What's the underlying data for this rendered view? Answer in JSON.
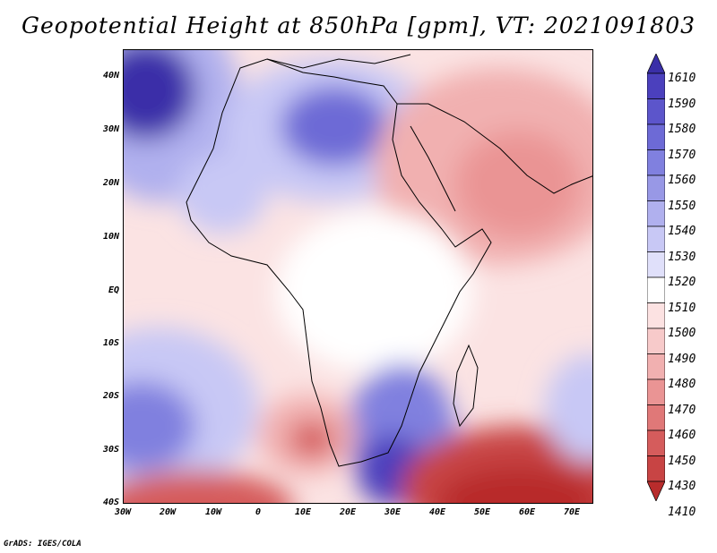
{
  "title": "Geopotential Height at 850hPa [gpm], VT: 2021091803",
  "footer": "GrADS: IGES/COLA",
  "y_axis": [
    "40N",
    "30N",
    "20N",
    "10N",
    "EQ",
    "10S",
    "20S",
    "30S",
    "40S"
  ],
  "x_axis": [
    "30W",
    "20W",
    "10W",
    "0",
    "10E",
    "20E",
    "30E",
    "40E",
    "50E",
    "60E",
    "70E"
  ],
  "colorbar": {
    "labels": [
      "1610",
      "1590",
      "1580",
      "1570",
      "1560",
      "1550",
      "1540",
      "1530",
      "1520",
      "1510",
      "1500",
      "1490",
      "1480",
      "1470",
      "1460",
      "1450",
      "1430",
      "1410"
    ],
    "colors": [
      "#3a2fa8",
      "#4b40bd",
      "#5c55cb",
      "#6d6ad6",
      "#8080df",
      "#9898e6",
      "#b0b0ee",
      "#c8c8f5",
      "#e0e0fa",
      "#ffffff",
      "#fce2e2",
      "#f7caca",
      "#f1b0b0",
      "#ea9494",
      "#e07878",
      "#d55c5c",
      "#c84444",
      "#b82c2c"
    ]
  }
}
